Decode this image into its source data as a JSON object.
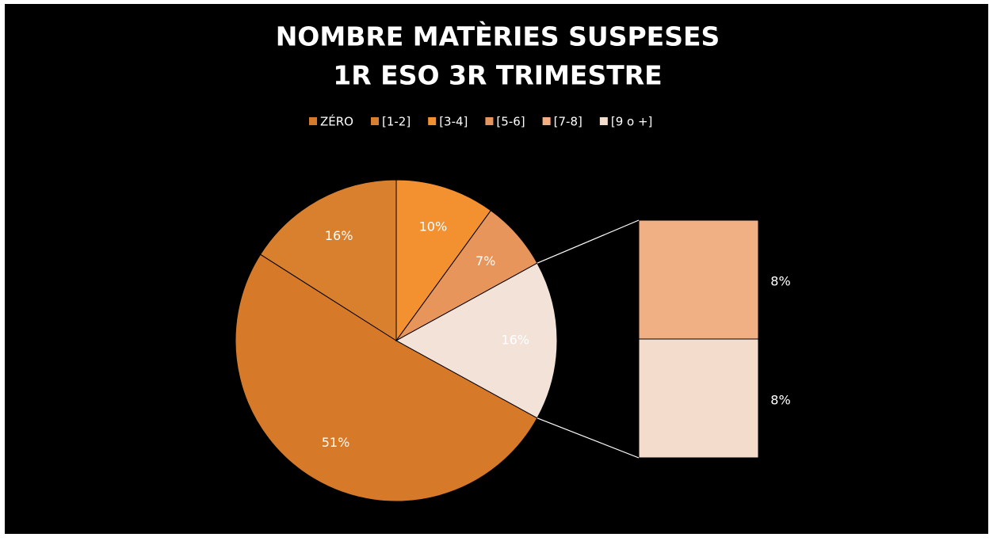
{
  "chart_data": {
    "type": "pie-of-bar",
    "title": [
      "NOMBRE  MATÈRIES SUSPESES",
      "1R  ESO  3R  TRIMESTRE"
    ],
    "categories": [
      "ZÉRO",
      "[1-2]",
      "[3-4]",
      "[5-6]",
      "[7-8]",
      "[9 o +]"
    ],
    "values": [
      51,
      16,
      10,
      7,
      8,
      8
    ],
    "value_labels": [
      "51%",
      "16%",
      "10%",
      "7%",
      "8%",
      "8%"
    ],
    "colors": [
      "#d67a2a",
      "#d9802f",
      "#f39131",
      "#e8955c",
      "#f0b084",
      "#f4dccd"
    ],
    "split_count": 2,
    "other_value": 16,
    "other_value_label": "16%",
    "other_color": "#f2e2d8",
    "legend": "top"
  }
}
